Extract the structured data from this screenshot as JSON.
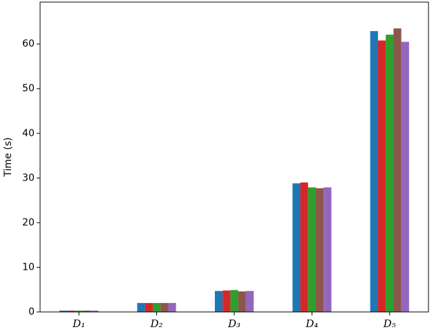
{
  "chart_data": {
    "type": "bar",
    "ylabel": "Time (s)",
    "categories": [
      "D₁",
      "D₂",
      "D₃",
      "D₄",
      "D₅"
    ],
    "series": [
      {
        "color": "#1f77b4",
        "values": [
          0.3,
          2.0,
          4.7,
          28.8,
          62.9
        ]
      },
      {
        "color": "#d62728",
        "values": [
          0.3,
          2.0,
          4.8,
          29.0,
          60.8
        ]
      },
      {
        "color": "#2ca02c",
        "values": [
          0.3,
          2.0,
          4.9,
          27.9,
          62.1
        ]
      },
      {
        "color": "#8c564b",
        "values": [
          0.3,
          2.0,
          4.6,
          27.7,
          63.5
        ]
      },
      {
        "color": "#9467bd",
        "values": [
          0.3,
          2.0,
          4.7,
          27.9,
          60.5
        ]
      }
    ],
    "ylim": [
      0,
      69.4
    ],
    "yticks": [
      0,
      10,
      20,
      30,
      40,
      50,
      60
    ]
  }
}
